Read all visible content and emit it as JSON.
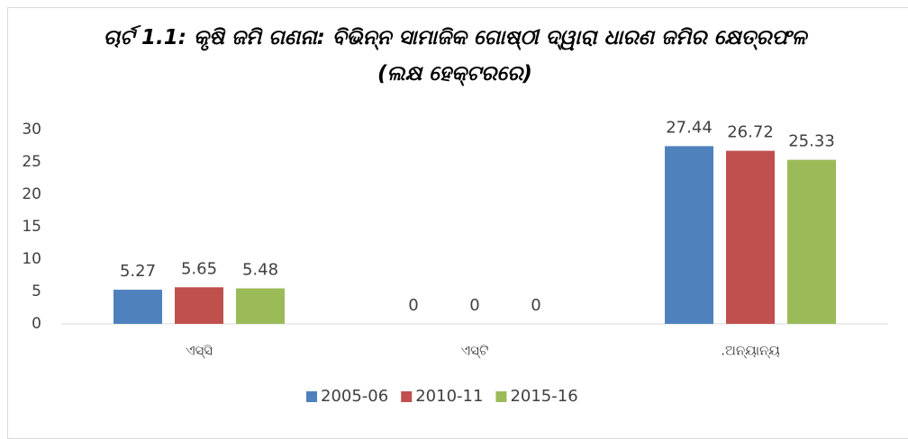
{
  "chart_data": {
    "type": "bar",
    "title": "ଚାର୍ଟ 1.1: କୃଷି ଜମି ଗଣନା: ବିଭିନ୍ନ ସାମାଜିକ ଗୋଷ୍ଠୀ ଦ୍ୱାରା ଧାରଣ ଜମିର କ୍ଷେତ୍ରଫଳ (ଲକ୍ଷ ହେକ୍ଟରରେ)",
    "categories": [
      "ଏସ୍‌ସି",
      "ଏସ୍‌ଟି",
      ".ଅନ୍ୟାନ୍ୟ"
    ],
    "series": [
      {
        "name": "2005-06",
        "color": "#4f81bd",
        "values": [
          5.27,
          0,
          27.44
        ]
      },
      {
        "name": "2010-11",
        "color": "#c0504d",
        "values": [
          5.65,
          0,
          26.72
        ]
      },
      {
        "name": "2015-16",
        "color": "#9bbb59",
        "values": [
          5.48,
          0,
          25.33
        ]
      }
    ],
    "ylim": [
      0,
      30
    ],
    "yticks": [
      0,
      5,
      10,
      15,
      20,
      25,
      30
    ],
    "grid": false,
    "legend": "bottom"
  }
}
